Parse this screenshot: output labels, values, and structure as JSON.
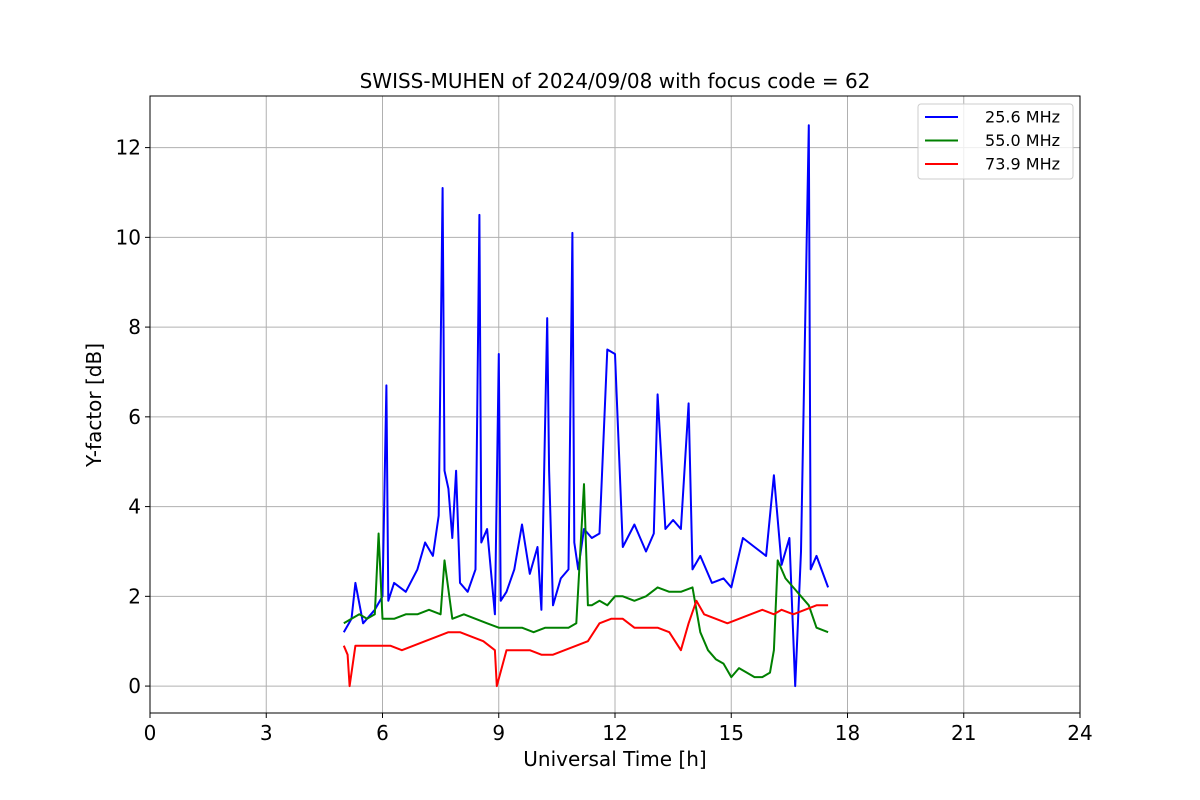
{
  "chart_data": {
    "type": "line",
    "title": "SWISS-MUHEN of 2024/09/08 with focus code = 62",
    "xlabel": "Universal Time [h]",
    "ylabel": "Y-factor [dB]",
    "xlim": [
      0,
      24
    ],
    "ylim": [
      -0.6,
      13.15
    ],
    "xticks": [
      0,
      3,
      6,
      9,
      12,
      15,
      18,
      21,
      24
    ],
    "yticks": [
      0,
      2,
      4,
      6,
      8,
      10,
      12
    ],
    "grid": true,
    "legend_position": "upper right",
    "series": [
      {
        "name": "25.6 MHz",
        "color": "#0000ff",
        "x": [
          5.0,
          5.2,
          5.3,
          5.5,
          5.8,
          6.0,
          6.1,
          6.15,
          6.3,
          6.6,
          6.9,
          7.1,
          7.3,
          7.45,
          7.55,
          7.6,
          7.7,
          7.8,
          7.9,
          8.0,
          8.2,
          8.4,
          8.5,
          8.55,
          8.7,
          8.9,
          9.0,
          9.05,
          9.2,
          9.4,
          9.6,
          9.8,
          10.0,
          10.1,
          10.25,
          10.3,
          10.4,
          10.6,
          10.8,
          10.9,
          10.95,
          11.05,
          11.2,
          11.4,
          11.6,
          11.8,
          12.0,
          12.2,
          12.5,
          12.8,
          13.0,
          13.1,
          13.3,
          13.5,
          13.7,
          13.9,
          14.0,
          14.2,
          14.5,
          14.8,
          15.0,
          15.3,
          15.6,
          15.9,
          16.1,
          16.3,
          16.5,
          16.65,
          16.8,
          17.0,
          17.05,
          17.2,
          17.5
        ],
        "y": [
          1.2,
          1.5,
          2.3,
          1.4,
          1.7,
          2.0,
          6.7,
          1.9,
          2.3,
          2.1,
          2.6,
          3.2,
          2.9,
          3.8,
          11.1,
          4.8,
          4.4,
          3.3,
          4.8,
          2.3,
          2.1,
          2.6,
          10.5,
          3.2,
          3.5,
          1.6,
          7.4,
          1.9,
          2.1,
          2.6,
          3.6,
          2.5,
          3.1,
          1.7,
          8.2,
          4.8,
          1.8,
          2.4,
          2.6,
          10.1,
          3.2,
          2.6,
          3.5,
          3.3,
          3.4,
          7.5,
          7.4,
          3.1,
          3.6,
          3.0,
          3.4,
          6.5,
          3.5,
          3.7,
          3.5,
          6.3,
          2.6,
          2.9,
          2.3,
          2.4,
          2.2,
          3.3,
          3.1,
          2.9,
          4.7,
          2.7,
          3.3,
          0.0,
          3.0,
          12.5,
          2.6,
          2.9,
          2.2
        ]
      },
      {
        "name": "55.0 MHz",
        "color": "#008000",
        "x": [
          5.0,
          5.2,
          5.4,
          5.6,
          5.8,
          5.9,
          6.0,
          6.3,
          6.6,
          6.9,
          7.2,
          7.5,
          7.6,
          7.8,
          8.1,
          8.4,
          8.7,
          9.0,
          9.3,
          9.6,
          9.9,
          10.2,
          10.5,
          10.8,
          11.0,
          11.2,
          11.3,
          11.4,
          11.6,
          11.8,
          12.0,
          12.2,
          12.5,
          12.8,
          13.1,
          13.4,
          13.7,
          14.0,
          14.2,
          14.4,
          14.6,
          14.8,
          15.0,
          15.2,
          15.4,
          15.6,
          15.8,
          16.0,
          16.1,
          16.2,
          16.4,
          16.6,
          16.8,
          17.0,
          17.2,
          17.5
        ],
        "y": [
          1.4,
          1.5,
          1.6,
          1.5,
          1.6,
          3.4,
          1.5,
          1.5,
          1.6,
          1.6,
          1.7,
          1.6,
          2.8,
          1.5,
          1.6,
          1.5,
          1.4,
          1.3,
          1.3,
          1.3,
          1.2,
          1.3,
          1.3,
          1.3,
          1.4,
          4.5,
          1.8,
          1.8,
          1.9,
          1.8,
          2.0,
          2.0,
          1.9,
          2.0,
          2.2,
          2.1,
          2.1,
          2.2,
          1.2,
          0.8,
          0.6,
          0.5,
          0.2,
          0.4,
          0.3,
          0.2,
          0.2,
          0.3,
          0.8,
          2.8,
          2.4,
          2.2,
          2.0,
          1.8,
          1.3,
          1.2
        ]
      },
      {
        "name": "73.9 MHz",
        "color": "#ff0000",
        "x": [
          5.0,
          5.1,
          5.15,
          5.3,
          5.6,
          5.9,
          6.2,
          6.5,
          6.8,
          7.1,
          7.4,
          7.7,
          8.0,
          8.3,
          8.6,
          8.9,
          8.95,
          9.2,
          9.5,
          9.8,
          10.1,
          10.4,
          10.7,
          11.0,
          11.3,
          11.6,
          11.9,
          12.2,
          12.5,
          12.8,
          13.1,
          13.4,
          13.7,
          13.9,
          14.1,
          14.3,
          14.6,
          14.9,
          15.2,
          15.5,
          15.8,
          16.1,
          16.3,
          16.6,
          16.9,
          17.2,
          17.5
        ],
        "y": [
          0.9,
          0.7,
          0.0,
          0.9,
          0.9,
          0.9,
          0.9,
          0.8,
          0.9,
          1.0,
          1.1,
          1.2,
          1.2,
          1.1,
          1.0,
          0.8,
          0.0,
          0.8,
          0.8,
          0.8,
          0.7,
          0.7,
          0.8,
          0.9,
          1.0,
          1.4,
          1.5,
          1.5,
          1.3,
          1.3,
          1.3,
          1.2,
          0.8,
          1.4,
          1.9,
          1.6,
          1.5,
          1.4,
          1.5,
          1.6,
          1.7,
          1.6,
          1.7,
          1.6,
          1.7,
          1.8,
          1.8
        ]
      }
    ]
  }
}
